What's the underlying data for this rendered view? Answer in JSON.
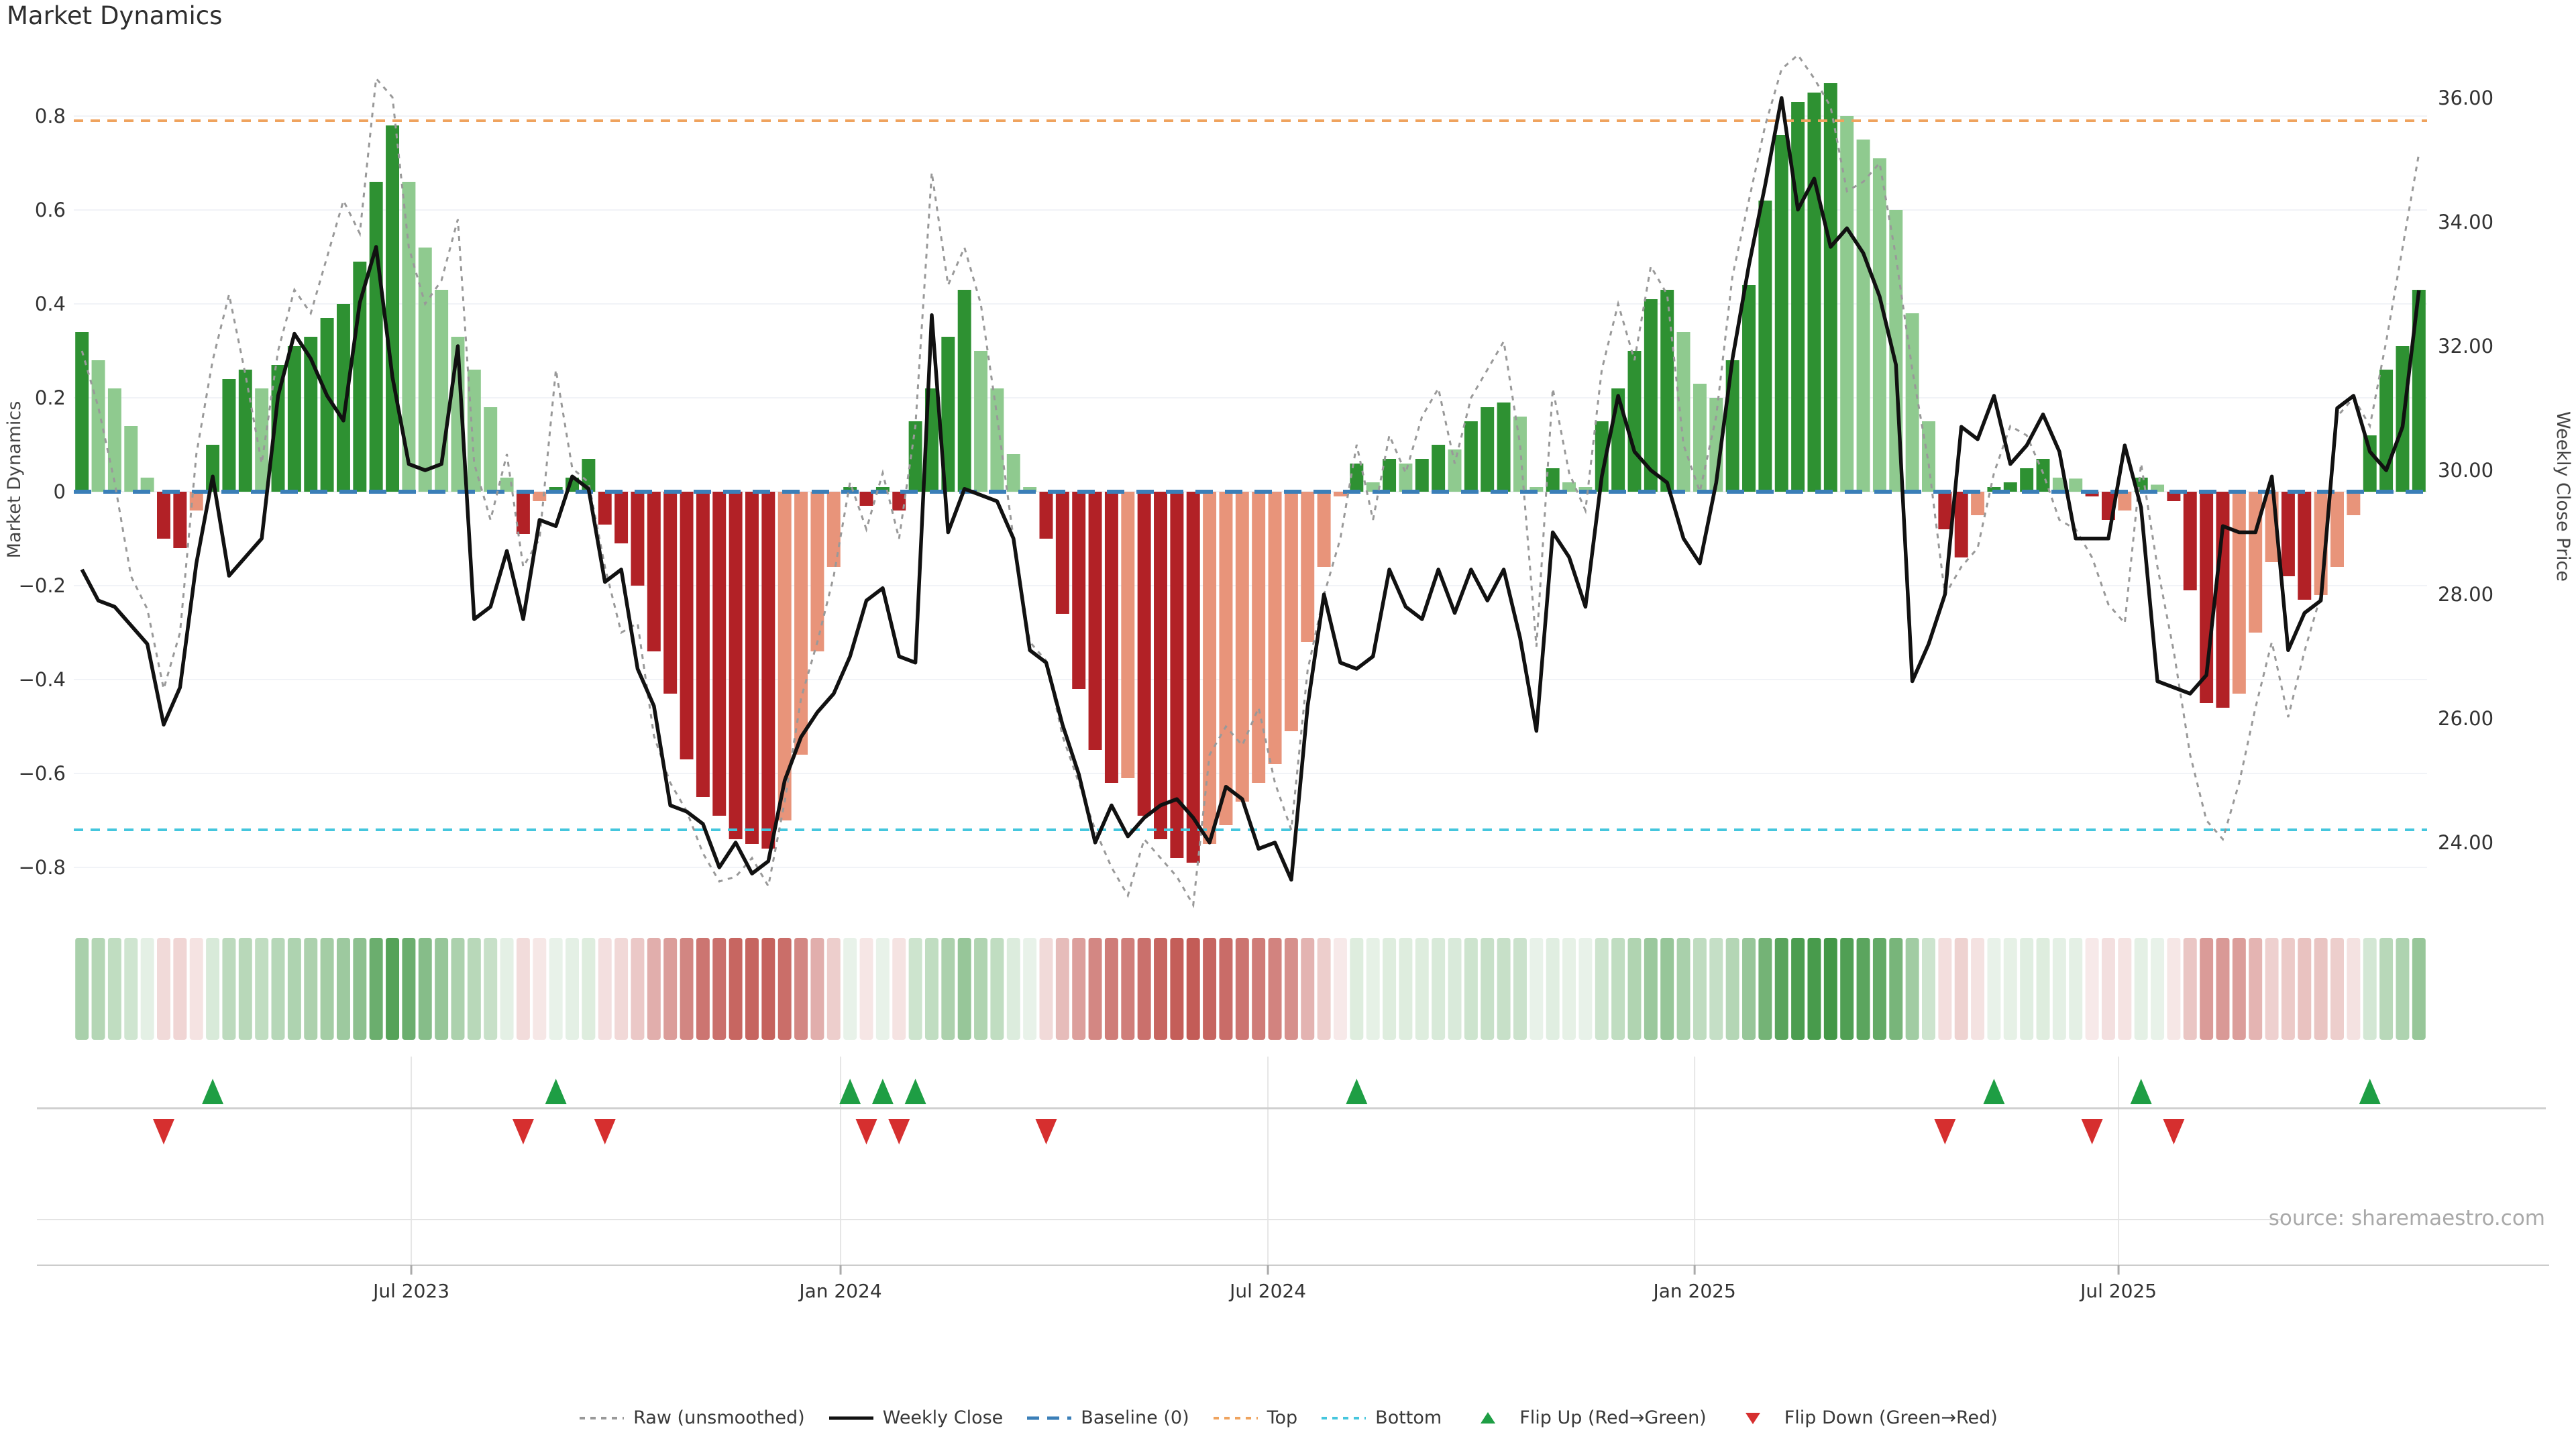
{
  "title": "Market Dynamics",
  "source_note": "source: sharemaestro.com",
  "axes": {
    "left": {
      "title": "Market Dynamics",
      "tick_labels": [
        "0.8",
        "0.6",
        "0.4",
        "0.2",
        "0",
        "−0.2",
        "−0.4",
        "−0.6",
        "−0.8"
      ],
      "tick_values": [
        0.8,
        0.6,
        0.4,
        0.2,
        0,
        -0.2,
        -0.4,
        -0.6,
        -0.8
      ]
    },
    "right": {
      "title": "Weekly Close Price",
      "tick_labels": [
        "36.00",
        "34.00",
        "32.00",
        "30.00",
        "28.00",
        "26.00",
        "24.00"
      ],
      "tick_values": [
        36,
        34,
        32,
        30,
        28,
        26,
        24
      ]
    },
    "x": {
      "tick_labels": [
        "Jul 2023",
        "Jan 2024",
        "Jul 2024",
        "Jan 2025",
        "Jul 2025"
      ],
      "tick_week_positions": [
        20.15,
        46.42,
        72.57,
        98.68,
        124.62
      ]
    }
  },
  "legend": {
    "items": [
      {
        "label": "Raw (unsmoothed)",
        "symbol": "dotted-line",
        "color": "#999999"
      },
      {
        "label": "Weekly Close",
        "symbol": "solid-line",
        "color": "#111111"
      },
      {
        "label": "Baseline (0)",
        "symbol": "dashed-line",
        "color": "#3b7fb8"
      },
      {
        "label": "Top",
        "symbol": "dotted-line",
        "color": "#efa35e"
      },
      {
        "label": "Bottom",
        "symbol": "dotted-line",
        "color": "#45c6dd"
      },
      {
        "label": "Flip Up (Red→Green)",
        "symbol": "triangle-up",
        "color": "#1e9e44"
      },
      {
        "label": "Flip Down (Green→Red)",
        "symbol": "triangle-down",
        "color": "#d62f2f"
      }
    ]
  },
  "colors": {
    "bar_strong_green": "#2e9132",
    "bar_weak_green": "#8fca8f",
    "bar_strong_red": "#b22126",
    "bar_weak_red": "#e8947a",
    "baseline_blue": "#3b7fb8",
    "top_orange": "#efa35e",
    "bottom_cyan": "#45c6dd",
    "raw_gray": "#999999",
    "close_black": "#111111",
    "grid": "#f1f3f7",
    "lower_grid": "#e6e6e6",
    "spine": "#cccccc",
    "flip_up_green": "#1e9e44",
    "flip_down_red": "#d62f2f",
    "strip_green_base": "47,141,51",
    "strip_red_base": "183,59,53",
    "tick_text": "#333333",
    "axis_title_text": "#444444"
  },
  "chart_data": {
    "type": [
      "bar",
      "line",
      "heatmap-strip",
      "event-markers"
    ],
    "title": "Market Dynamics",
    "ylabel_left": "Market Dynamics",
    "ylabel_right": "Weekly Close Price",
    "weeks": 144,
    "left_ylim": [
      -0.9,
      0.92
    ],
    "right_ylim": [
      23.3,
      36.3
    ],
    "baseline": 0,
    "top_threshold": 0.79,
    "bottom_threshold": -0.72,
    "grid": true,
    "legend_position": "bottom-center",
    "smoothed_dynamics_bars": [
      0.34,
      0.28,
      0.22,
      0.14,
      0.03,
      -0.1,
      -0.12,
      -0.04,
      0.1,
      0.24,
      0.26,
      0.22,
      0.27,
      0.31,
      0.33,
      0.37,
      0.4,
      0.49,
      0.66,
      0.78,
      0.66,
      0.52,
      0.43,
      0.33,
      0.26,
      0.18,
      0.03,
      -0.09,
      -0.02,
      0.01,
      0.03,
      0.07,
      -0.07,
      -0.11,
      -0.2,
      -0.34,
      -0.43,
      -0.57,
      -0.65,
      -0.69,
      -0.74,
      -0.75,
      -0.76,
      -0.7,
      -0.56,
      -0.34,
      -0.16,
      0.01,
      -0.03,
      0.01,
      -0.04,
      0.15,
      0.22,
      0.33,
      0.43,
      0.3,
      0.22,
      0.08,
      0.01,
      -0.1,
      -0.26,
      -0.42,
      -0.55,
      -0.62,
      -0.61,
      -0.69,
      -0.74,
      -0.78,
      -0.79,
      -0.75,
      -0.71,
      -0.66,
      -0.62,
      -0.58,
      -0.51,
      -0.32,
      -0.16,
      -0.01,
      0.06,
      0.02,
      0.07,
      0.06,
      0.07,
      0.1,
      0.09,
      0.15,
      0.18,
      0.19,
      0.16,
      0.01,
      0.05,
      0.02,
      0.01,
      0.15,
      0.22,
      0.3,
      0.41,
      0.43,
      0.34,
      0.23,
      0.2,
      0.28,
      0.44,
      0.62,
      0.76,
      0.83,
      0.85,
      0.87,
      0.8,
      0.75,
      0.71,
      0.6,
      0.38,
      0.15,
      -0.08,
      -0.14,
      -0.05,
      0.01,
      0.02,
      0.05,
      0.07,
      0.03,
      0.028,
      -0.01,
      -0.06,
      -0.04,
      0.03,
      0.015,
      -0.02,
      -0.21,
      -0.45,
      -0.46,
      -0.43,
      -0.3,
      -0.15,
      -0.18,
      -0.23,
      -0.22,
      -0.16,
      -0.05,
      0.12,
      0.26,
      0.31,
      0.43
    ],
    "raw_unsmoothed": [
      0.3,
      0.18,
      0.02,
      -0.18,
      -0.25,
      -0.42,
      -0.3,
      0.08,
      0.28,
      0.42,
      0.25,
      0.06,
      0.3,
      0.43,
      0.38,
      0.5,
      0.62,
      0.55,
      0.88,
      0.84,
      0.52,
      0.4,
      0.45,
      0.58,
      0.06,
      -0.06,
      0.08,
      -0.16,
      -0.1,
      0.26,
      0.05,
      0.02,
      -0.16,
      -0.3,
      -0.28,
      -0.52,
      -0.62,
      -0.68,
      -0.77,
      -0.83,
      -0.82,
      -0.78,
      -0.84,
      -0.66,
      -0.44,
      -0.32,
      -0.18,
      0.02,
      -0.08,
      0.04,
      -0.1,
      0.14,
      0.68,
      0.44,
      0.52,
      0.4,
      0.16,
      -0.1,
      -0.32,
      -0.36,
      -0.52,
      -0.62,
      -0.72,
      -0.8,
      -0.86,
      -0.74,
      -0.78,
      -0.82,
      -0.88,
      -0.56,
      -0.5,
      -0.54,
      -0.46,
      -0.62,
      -0.72,
      -0.38,
      -0.22,
      -0.1,
      0.1,
      -0.06,
      0.12,
      0.04,
      0.16,
      0.22,
      0.06,
      0.2,
      0.26,
      0.32,
      0.1,
      -0.33,
      0.22,
      0.04,
      -0.04,
      0.26,
      0.4,
      0.28,
      0.48,
      0.42,
      0.1,
      0.0,
      0.16,
      0.46,
      0.62,
      0.78,
      0.9,
      0.93,
      0.88,
      0.82,
      0.64,
      0.66,
      0.7,
      0.5,
      0.26,
      0.06,
      -0.22,
      -0.16,
      -0.12,
      0.04,
      0.14,
      0.12,
      0.04,
      -0.06,
      -0.08,
      -0.14,
      -0.24,
      -0.28,
      0.06,
      -0.16,
      -0.34,
      -0.56,
      -0.7,
      -0.74,
      -0.62,
      -0.46,
      -0.32,
      -0.48,
      -0.34,
      -0.22,
      0.16,
      0.2,
      0.14,
      0.32,
      0.52,
      0.72
    ],
    "weekly_close": [
      28.4,
      27.9,
      27.8,
      27.5,
      27.2,
      25.9,
      26.5,
      28.5,
      29.9,
      28.3,
      28.6,
      28.9,
      31.2,
      32.2,
      31.8,
      31.2,
      30.8,
      32.7,
      33.6,
      31.5,
      30.1,
      30.0,
      30.1,
      32.0,
      27.6,
      27.8,
      28.7,
      27.6,
      29.2,
      29.1,
      29.9,
      29.7,
      28.2,
      28.4,
      26.8,
      26.2,
      24.6,
      24.5,
      24.3,
      23.6,
      24.0,
      23.5,
      23.7,
      25.0,
      25.7,
      26.1,
      26.4,
      27.0,
      27.9,
      28.1,
      27.0,
      26.9,
      32.5,
      29.0,
      29.7,
      29.6,
      29.5,
      28.9,
      27.1,
      26.9,
      25.9,
      25.1,
      24.0,
      24.6,
      24.1,
      24.4,
      24.6,
      24.7,
      24.4,
      24.0,
      24.9,
      24.7,
      23.9,
      24.0,
      23.4,
      26.2,
      28.0,
      26.9,
      26.8,
      27.0,
      28.4,
      27.8,
      27.6,
      28.4,
      27.7,
      28.4,
      27.9,
      28.4,
      27.3,
      25.8,
      29.0,
      28.6,
      27.8,
      29.9,
      31.2,
      30.3,
      30.0,
      29.8,
      28.9,
      28.5,
      29.8,
      31.8,
      33.3,
      34.6,
      36.0,
      34.2,
      34.7,
      33.6,
      33.9,
      33.5,
      32.8,
      31.7,
      26.6,
      27.2,
      28.0,
      30.7,
      30.5,
      31.2,
      30.1,
      30.4,
      30.9,
      30.3,
      28.9,
      28.9,
      28.9,
      30.4,
      29.4,
      26.6,
      26.5,
      26.4,
      26.7,
      29.1,
      29.0,
      29.0,
      29.9,
      27.1,
      27.7,
      27.9,
      31.0,
      31.2,
      30.3,
      30.0,
      30.7,
      32.9
    ],
    "flip_up_weeks": [
      9,
      30,
      48,
      50,
      52,
      79,
      118,
      127,
      141
    ],
    "flip_down_weeks": [
      6,
      28,
      33,
      49,
      51,
      60,
      115,
      124,
      129
    ]
  }
}
